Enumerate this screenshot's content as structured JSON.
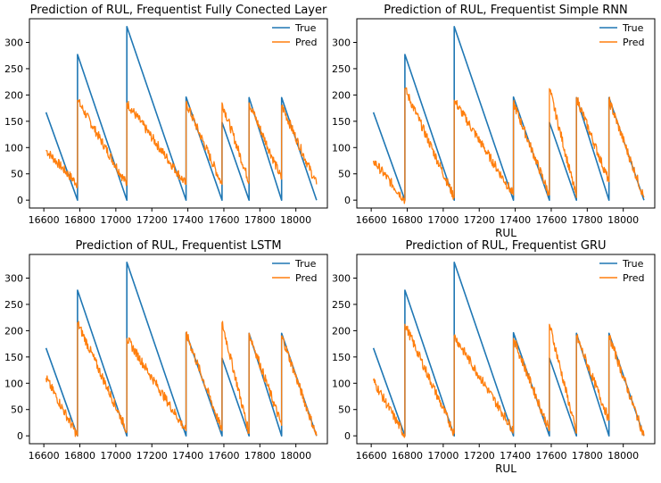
{
  "colors": {
    "true_series": "#1f77b4",
    "pred_series": "#ff7f0e",
    "axes": "#000000",
    "background": "#ffffff"
  },
  "chart_data": [
    {
      "type": "line",
      "title": "Prediction of RUL, Frequentist Fully Conected Layer",
      "xlabel": "",
      "ylabel": "",
      "xlim": [
        16520,
        18175
      ],
      "ylim": [
        -15,
        345
      ],
      "xticks": [
        16600,
        16800,
        17000,
        17200,
        17400,
        17600,
        17800,
        18000
      ],
      "yticks": [
        0,
        50,
        100,
        150,
        200,
        250,
        300
      ],
      "legend": {
        "placement": "top-right",
        "entries": [
          "True",
          "Pred"
        ]
      },
      "grid": false,
      "series": [
        {
          "name": "True",
          "segments": [
            [
              16612,
              167,
              16787,
              0
            ],
            [
              16787,
              277,
              17061,
              0
            ],
            [
              17061,
              330,
              17390,
              0
            ],
            [
              17390,
              196,
              17590,
              0
            ],
            [
              17590,
              148,
              17740,
              0
            ],
            [
              17740,
              195,
              17921,
              0
            ],
            [
              17921,
              195,
              18115,
              0
            ]
          ]
        },
        {
          "name": "Pred",
          "style": "noisy",
          "segments": [
            [
              16612,
              95,
              16787,
              30
            ],
            [
              16787,
              190,
              17061,
              30
            ],
            [
              17061,
              185,
              17390,
              30
            ],
            [
              17390,
              185,
              17590,
              30
            ],
            [
              17590,
              185,
              17740,
              35
            ],
            [
              17740,
              185,
              17921,
              40
            ],
            [
              17921,
              180,
              18115,
              30
            ]
          ]
        }
      ]
    },
    {
      "type": "line",
      "title": "Prediction of RUL, Frequentist Simple RNN",
      "xlabel": "RUL",
      "ylabel": "",
      "xlim": [
        16520,
        18175
      ],
      "ylim": [
        -15,
        345
      ],
      "xticks": [
        16600,
        16800,
        17000,
        17200,
        17400,
        17600,
        17800,
        18000
      ],
      "yticks": [
        0,
        50,
        100,
        150,
        200,
        250,
        300
      ],
      "legend": {
        "placement": "top-right",
        "entries": [
          "True",
          "Pred"
        ]
      },
      "grid": false,
      "series": [
        {
          "name": "True",
          "segments": [
            [
              16612,
              167,
              16787,
              0
            ],
            [
              16787,
              277,
              17061,
              0
            ],
            [
              17061,
              330,
              17390,
              0
            ],
            [
              17390,
              196,
              17590,
              0
            ],
            [
              17590,
              148,
              17740,
              0
            ],
            [
              17740,
              195,
              17921,
              0
            ],
            [
              17921,
              195,
              18115,
              0
            ]
          ]
        },
        {
          "name": "Pred",
          "style": "noisy",
          "segments": [
            [
              16612,
              75,
              16787,
              0
            ],
            [
              16787,
              212,
              17061,
              5
            ],
            [
              17061,
              190,
              17390,
              10
            ],
            [
              17390,
              185,
              17590,
              10
            ],
            [
              17590,
              212,
              17740,
              5
            ],
            [
              17740,
              195,
              17921,
              35
            ],
            [
              17921,
              190,
              18115,
              5
            ]
          ]
        }
      ]
    },
    {
      "type": "line",
      "title": "Prediction of RUL, Frequentist LSTM",
      "xlabel": "",
      "ylabel": "",
      "xlim": [
        16520,
        18175
      ],
      "ylim": [
        -15,
        345
      ],
      "xticks": [
        16600,
        16800,
        17000,
        17200,
        17400,
        17600,
        17800,
        18000
      ],
      "yticks": [
        0,
        50,
        100,
        150,
        200,
        250,
        300
      ],
      "legend": {
        "placement": "top-right",
        "entries": [
          "True",
          "Pred"
        ]
      },
      "grid": false,
      "series": [
        {
          "name": "True",
          "segments": [
            [
              16612,
              167,
              16787,
              0
            ],
            [
              16787,
              277,
              17061,
              0
            ],
            [
              17061,
              330,
              17390,
              0
            ],
            [
              17390,
              196,
              17590,
              0
            ],
            [
              17590,
              148,
              17740,
              0
            ],
            [
              17740,
              195,
              17921,
              0
            ],
            [
              17921,
              195,
              18115,
              0
            ]
          ]
        },
        {
          "name": "Pred",
          "style": "noisy",
          "segments": [
            [
              16612,
              110,
              16787,
              0
            ],
            [
              16787,
              215,
              17061,
              10
            ],
            [
              17061,
              185,
              17390,
              10
            ],
            [
              17390,
              195,
              17590,
              10
            ],
            [
              17590,
              215,
              17740,
              5
            ],
            [
              17740,
              195,
              17921,
              20
            ],
            [
              17921,
              190,
              18115,
              0
            ]
          ]
        }
      ]
    },
    {
      "type": "line",
      "title": "Prediction of RUL, Frequentist GRU",
      "xlabel": "RUL",
      "ylabel": "",
      "xlim": [
        16520,
        18175
      ],
      "ylim": [
        -15,
        345
      ],
      "xticks": [
        16600,
        16800,
        17000,
        17200,
        17400,
        17600,
        17800,
        18000
      ],
      "yticks": [
        0,
        50,
        100,
        150,
        200,
        250,
        300
      ],
      "legend": {
        "placement": "top-right",
        "entries": [
          "True",
          "Pred"
        ]
      },
      "grid": false,
      "series": [
        {
          "name": "True",
          "segments": [
            [
              16612,
              167,
              16787,
              0
            ],
            [
              16787,
              277,
              17061,
              0
            ],
            [
              17061,
              330,
              17390,
              0
            ],
            [
              17390,
              196,
              17590,
              0
            ],
            [
              17590,
              148,
              17740,
              0
            ],
            [
              17740,
              195,
              17921,
              0
            ],
            [
              17921,
              195,
              18115,
              0
            ]
          ]
        },
        {
          "name": "Pred",
          "style": "noisy",
          "segments": [
            [
              16612,
              105,
              16787,
              0
            ],
            [
              16787,
              212,
              17061,
              5
            ],
            [
              17061,
              190,
              17390,
              10
            ],
            [
              17390,
              185,
              17590,
              10
            ],
            [
              17590,
              212,
              17740,
              5
            ],
            [
              17740,
              190,
              17921,
              30
            ],
            [
              17921,
              190,
              18115,
              0
            ]
          ]
        }
      ]
    }
  ]
}
